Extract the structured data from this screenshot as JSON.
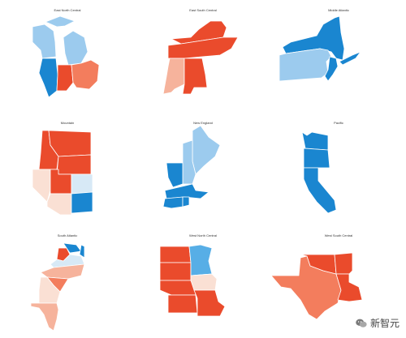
{
  "colors": {
    "dark_blue": "#1a86d0",
    "mid_blue": "#57aee6",
    "light_blue": "#9ccbee",
    "pale_blue": "#d7e9f6",
    "dark_red": "#ea4b2c",
    "mid_red": "#f37d5d",
    "light_red": "#f6b39c",
    "pale_red": "#fae0d4"
  },
  "panels": [
    {
      "title": "East North Central",
      "states": [
        {
          "name": "Wisconsin",
          "color": "light_blue"
        },
        {
          "name": "Michigan",
          "color": "light_blue"
        },
        {
          "name": "Illinois",
          "color": "dark_blue"
        },
        {
          "name": "Indiana",
          "color": "dark_red"
        },
        {
          "name": "Ohio",
          "color": "mid_red"
        }
      ]
    },
    {
      "title": "East South Central",
      "states": [
        {
          "name": "Kentucky",
          "color": "dark_red"
        },
        {
          "name": "Tennessee",
          "color": "dark_red"
        },
        {
          "name": "Mississippi",
          "color": "light_red"
        },
        {
          "name": "Alabama",
          "color": "dark_red"
        }
      ]
    },
    {
      "title": "Middle Atlantic",
      "states": [
        {
          "name": "New York",
          "color": "dark_blue"
        },
        {
          "name": "Pennsylvania",
          "color": "light_blue"
        },
        {
          "name": "New Jersey",
          "color": "dark_blue"
        }
      ]
    },
    {
      "title": "Mountain",
      "states": [
        {
          "name": "Idaho",
          "color": "dark_red"
        },
        {
          "name": "Montana",
          "color": "dark_red"
        },
        {
          "name": "Wyoming",
          "color": "dark_red"
        },
        {
          "name": "Nevada",
          "color": "pale_red"
        },
        {
          "name": "Utah",
          "color": "dark_red"
        },
        {
          "name": "Colorado",
          "color": "pale_blue"
        },
        {
          "name": "Arizona",
          "color": "pale_red"
        },
        {
          "name": "New Mexico",
          "color": "dark_blue"
        }
      ]
    },
    {
      "title": "New England",
      "states": [
        {
          "name": "Maine",
          "color": "light_blue"
        },
        {
          "name": "New Hampshire",
          "color": "light_blue"
        },
        {
          "name": "Vermont",
          "color": "dark_blue"
        },
        {
          "name": "Massachusetts",
          "color": "dark_blue"
        },
        {
          "name": "Connecticut",
          "color": "dark_blue"
        },
        {
          "name": "Rhode Island",
          "color": "dark_blue"
        }
      ]
    },
    {
      "title": "Pacific",
      "states": [
        {
          "name": "Washington",
          "color": "dark_blue"
        },
        {
          "name": "Oregon",
          "color": "dark_blue"
        },
        {
          "name": "California",
          "color": "dark_blue"
        }
      ]
    },
    {
      "title": "South Atlantic",
      "states": [
        {
          "name": "Maryland",
          "color": "dark_blue"
        },
        {
          "name": "Delaware",
          "color": "dark_blue"
        },
        {
          "name": "West Virginia",
          "color": "dark_red"
        },
        {
          "name": "Virginia",
          "color": "pale_blue"
        },
        {
          "name": "North Carolina",
          "color": "light_red"
        },
        {
          "name": "South Carolina",
          "color": "mid_red"
        },
        {
          "name": "Georgia",
          "color": "pale_red"
        },
        {
          "name": "Florida",
          "color": "light_red"
        }
      ]
    },
    {
      "title": "West North Central",
      "states": [
        {
          "name": "North Dakota",
          "color": "dark_red"
        },
        {
          "name": "South Dakota",
          "color": "dark_red"
        },
        {
          "name": "Nebraska",
          "color": "dark_red"
        },
        {
          "name": "Kansas",
          "color": "dark_red"
        },
        {
          "name": "Minnesota",
          "color": "mid_blue"
        },
        {
          "name": "Iowa",
          "color": "pale_red"
        },
        {
          "name": "Missouri",
          "color": "dark_red"
        }
      ]
    },
    {
      "title": "West South Central",
      "states": [
        {
          "name": "Texas",
          "color": "mid_red"
        },
        {
          "name": "Oklahoma",
          "color": "dark_red"
        },
        {
          "name": "Arkansas",
          "color": "dark_red"
        },
        {
          "name": "Louisiana",
          "color": "dark_red"
        }
      ]
    }
  ],
  "watermark": {
    "text": "新智元",
    "icon": "wechat-icon"
  }
}
